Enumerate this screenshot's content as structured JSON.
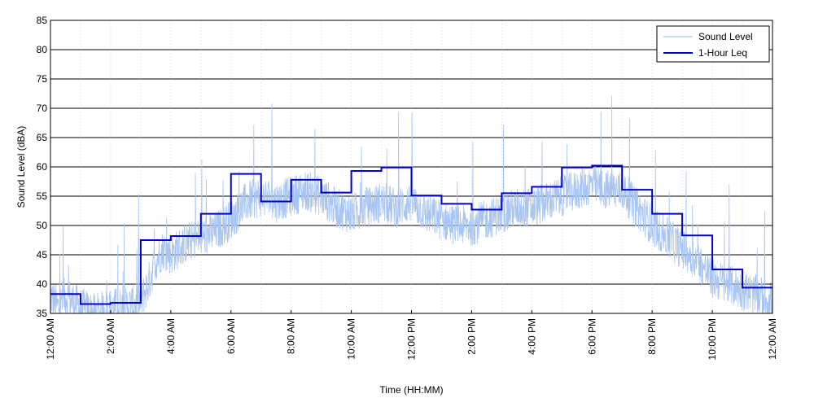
{
  "chart_data": {
    "type": "line",
    "title": "",
    "xlabel": "Time (HH:MM)",
    "ylabel": "Sound Level (dBA)",
    "xlim_hours": [
      0,
      24
    ],
    "ylim": [
      35,
      85
    ],
    "y_ticks": [
      35,
      40,
      45,
      50,
      55,
      60,
      65,
      70,
      75,
      80,
      85
    ],
    "x_tick_labels": [
      "12:00 AM",
      "2:00 AM",
      "4:00 AM",
      "6:00 AM",
      "8:00 AM",
      "10:00 AM",
      "12:00 PM",
      "2:00 PM",
      "4:00 PM",
      "6:00 PM",
      "8:00 PM",
      "10:00 PM",
      "12:00 AM"
    ],
    "grid": "horizontal",
    "legend_position": "top-right",
    "colors": {
      "sound_level": "#a8c4f0",
      "leq": "#0000cc"
    },
    "series": [
      {
        "name": "Sound Level",
        "kind": "fluctuating",
        "x_hours": [
          0,
          0.25,
          0.5,
          0.75,
          1,
          1.5,
          2,
          2.5,
          3,
          3.25,
          3.5,
          3.75,
          4,
          4.5,
          5,
          5.5,
          6,
          6.5,
          7,
          7.5,
          8,
          8.5,
          9,
          9.5,
          10,
          10.5,
          11,
          11.5,
          12,
          12.5,
          13,
          13.5,
          14,
          14.5,
          15,
          15.5,
          16,
          16.5,
          17,
          17.5,
          18,
          18.5,
          19,
          19.5,
          20,
          20.5,
          21,
          21.5,
          22,
          22.5,
          23,
          23.5,
          24
        ],
        "values": [
          38,
          36,
          38,
          37,
          36,
          35,
          36,
          36,
          37,
          40,
          44,
          46,
          45,
          47,
          48,
          49,
          51,
          54,
          55,
          54,
          55,
          56,
          55,
          53,
          52,
          53,
          54,
          53,
          54,
          52,
          51,
          50,
          50,
          51,
          52,
          53,
          53,
          54,
          55,
          56,
          57,
          56,
          56,
          53,
          50,
          48,
          46,
          44,
          41,
          40,
          39,
          38,
          37
        ]
      },
      {
        "name": "1-Hour Leq",
        "kind": "step",
        "x_hours": [
          0,
          1,
          2,
          3,
          4,
          5,
          6,
          7,
          8,
          9,
          10,
          11,
          12,
          13,
          14,
          15,
          16,
          17,
          18,
          19,
          20,
          21,
          22,
          23
        ],
        "values": [
          38.3,
          36.6,
          36.8,
          47.5,
          48.2,
          52.0,
          58.8,
          54.1,
          57.8,
          55.6,
          59.3,
          59.9,
          55.1,
          53.7,
          52.7,
          55.5,
          56.6,
          59.9,
          60.2,
          56.1,
          52.0,
          48.3,
          42.5,
          39.4
        ]
      }
    ]
  }
}
